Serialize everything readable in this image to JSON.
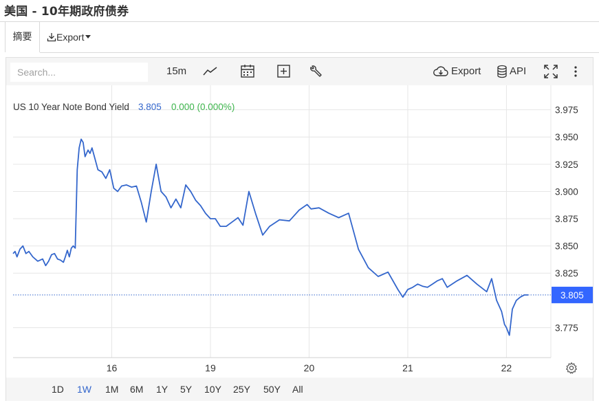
{
  "page": {
    "title": "美国 - 10年期政府债券"
  },
  "tabs": {
    "summary": "摘要",
    "export": "Export"
  },
  "toolbar": {
    "search_placeholder": "Search...",
    "interval": "15m",
    "export_label": "Export",
    "api_label": "API"
  },
  "legend": {
    "name": "US 10 Year Note Bond Yield",
    "value": "3.805",
    "change": "0.000 (0.000%)"
  },
  "ranges": [
    "1D",
    "1W",
    "1M",
    "6M",
    "1Y",
    "5Y",
    "10Y",
    "25Y",
    "50Y",
    "All"
  ],
  "active_range": "1W",
  "colors": {
    "line": "#3366cc",
    "up": "#3cb44b",
    "badge": "#3366ff",
    "grid": "#e6e6e6"
  },
  "chart_data": {
    "type": "line",
    "title": "",
    "xlabel": "",
    "ylabel": "",
    "grid": true,
    "ylim": [
      3.7475,
      3.9975
    ],
    "y_ticks": [
      3.975,
      3.95,
      3.925,
      3.9,
      3.875,
      3.85,
      3.825,
      3.775
    ],
    "x_ticks": [
      {
        "label": "16",
        "x": 11.0
      },
      {
        "label": "19",
        "x": 12.0
      },
      {
        "label": "20",
        "x": 13.0
      },
      {
        "label": "21",
        "x": 14.0
      },
      {
        "label": "22",
        "x": 15.0
      }
    ],
    "last_value": 3.805,
    "series": [
      {
        "name": "US 10 Year Note Bond Yield",
        "x": [
          10.0,
          10.02,
          10.04,
          10.07,
          10.1,
          10.13,
          10.16,
          10.2,
          10.25,
          10.3,
          10.33,
          10.36,
          10.39,
          10.42,
          10.45,
          10.48,
          10.51,
          10.53,
          10.55,
          10.57,
          10.59,
          10.61,
          10.63,
          10.65,
          10.67,
          10.69,
          10.71,
          10.73,
          10.76,
          10.78,
          10.8,
          10.83,
          10.86,
          10.9,
          10.94,
          10.98,
          11.02,
          11.06,
          11.1,
          11.15,
          11.2,
          11.25,
          11.3,
          11.35,
          11.4,
          11.45,
          11.5,
          11.55,
          11.6,
          11.65,
          11.7,
          11.75,
          11.8,
          11.85,
          11.9,
          11.95,
          12.0,
          12.05,
          12.1,
          12.16,
          12.22,
          12.28,
          12.33,
          12.39,
          12.46,
          12.53,
          12.6,
          12.7,
          12.8,
          12.9,
          12.98,
          13.02,
          13.1,
          13.2,
          13.3,
          13.4,
          13.5,
          13.6,
          13.7,
          13.8,
          13.9,
          13.95,
          14.0,
          14.05,
          14.1,
          14.15,
          14.2,
          14.25,
          14.3,
          14.35,
          14.4,
          14.5,
          14.6,
          14.7,
          14.8,
          14.85,
          14.9,
          14.95,
          14.98,
          15.0,
          15.03,
          15.06,
          15.1,
          15.14,
          15.18,
          15.22
        ],
        "values": [
          3.843,
          3.845,
          3.84,
          3.847,
          3.85,
          3.843,
          3.845,
          3.84,
          3.836,
          3.838,
          3.832,
          3.836,
          3.842,
          3.843,
          3.838,
          3.837,
          3.835,
          3.84,
          3.846,
          3.84,
          3.848,
          3.85,
          3.848,
          3.92,
          3.94,
          3.948,
          3.945,
          3.932,
          3.938,
          3.935,
          3.94,
          3.93,
          3.92,
          3.918,
          3.912,
          3.92,
          3.903,
          3.9,
          3.905,
          3.906,
          3.904,
          3.905,
          3.89,
          3.872,
          3.9,
          3.925,
          3.9,
          3.895,
          3.885,
          3.893,
          3.885,
          3.906,
          3.9,
          3.892,
          3.887,
          3.88,
          3.875,
          3.875,
          3.868,
          3.868,
          3.872,
          3.876,
          3.869,
          3.9,
          3.879,
          3.86,
          3.868,
          3.874,
          3.873,
          3.883,
          3.888,
          3.884,
          3.885,
          3.88,
          3.876,
          3.88,
          3.847,
          3.83,
          3.822,
          3.826,
          3.81,
          3.803,
          3.81,
          3.812,
          3.815,
          3.813,
          3.812,
          3.815,
          3.818,
          3.82,
          3.812,
          3.818,
          3.823,
          3.815,
          3.808,
          3.82,
          3.8,
          3.79,
          3.778,
          3.775,
          3.768,
          3.792,
          3.8,
          3.803,
          3.805,
          3.805
        ]
      }
    ]
  }
}
